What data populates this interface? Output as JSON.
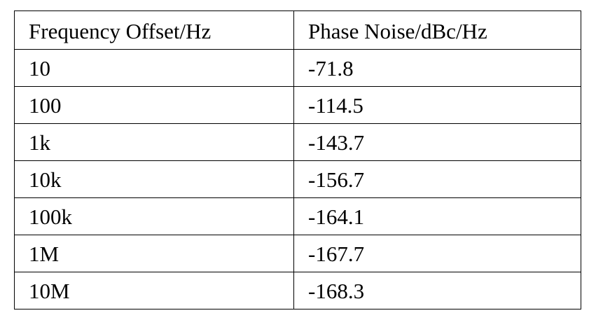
{
  "table": {
    "headers": [
      "Frequency Offset/Hz",
      "Phase Noise/dBc/Hz"
    ],
    "rows": [
      [
        "10",
        "-71.8"
      ],
      [
        "100",
        "-114.5"
      ],
      [
        "1k",
        "-143.7"
      ],
      [
        "10k",
        "-156.7"
      ],
      [
        "100k",
        "-164.1"
      ],
      [
        "1M",
        "-167.7"
      ],
      [
        "10M",
        "-168.3"
      ]
    ]
  }
}
